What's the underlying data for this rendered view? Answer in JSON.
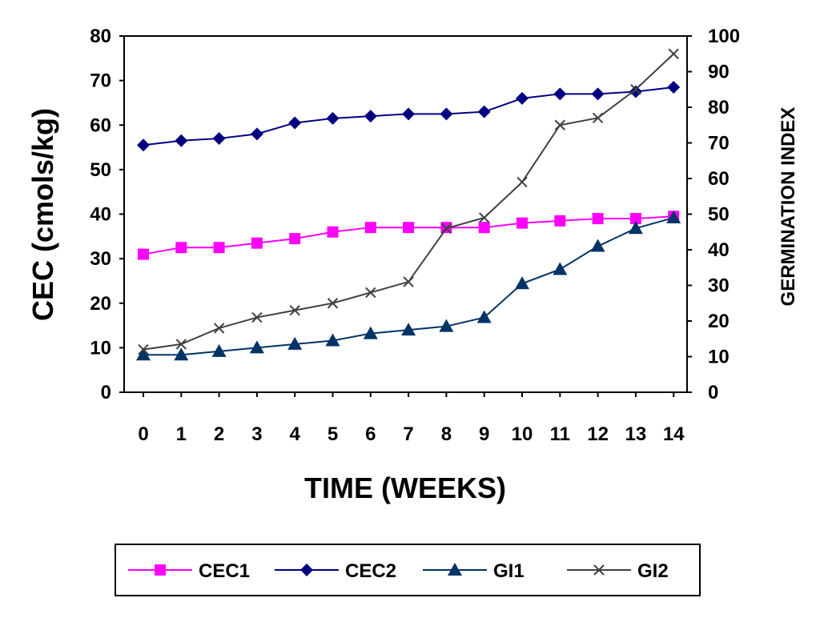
{
  "chart_data": {
    "type": "line",
    "title": "",
    "xlabel": "TIME (WEEKS)",
    "ylabel": "CEC (cmols/kg)",
    "y2label": "GERMINATION INDEX",
    "x": [
      0,
      1,
      2,
      3,
      4,
      5,
      6,
      7,
      8,
      9,
      10,
      11,
      12,
      13,
      14
    ],
    "ylim": [
      0,
      80
    ],
    "y2lim": [
      0,
      100
    ],
    "yticks": [
      0,
      10,
      20,
      30,
      40,
      50,
      60,
      70,
      80
    ],
    "y2ticks": [
      0,
      10,
      20,
      30,
      40,
      50,
      60,
      70,
      80,
      90,
      100
    ],
    "grid": false,
    "legend_position": "bottom",
    "series": [
      {
        "name": "CEC1",
        "axis": "left",
        "color": "#ff00ff",
        "marker": "square",
        "values": [
          31,
          32.5,
          32.5,
          33.5,
          34.5,
          36,
          37,
          37,
          37,
          37,
          38,
          38.5,
          39,
          39,
          39.5
        ]
      },
      {
        "name": "CEC2",
        "axis": "left",
        "color": "#000080",
        "marker": "diamond",
        "values": [
          55.5,
          56.5,
          57,
          58,
          60.5,
          61.5,
          62,
          62.5,
          62.5,
          63,
          66,
          67,
          67,
          67.5,
          68.5
        ]
      },
      {
        "name": "GI1",
        "axis": "right",
        "color": "#003366",
        "marker": "triangle",
        "values": [
          10.5,
          10.5,
          11.5,
          12.5,
          13.5,
          14.5,
          16.5,
          17.5,
          18.5,
          21,
          30.5,
          34.5,
          41,
          46,
          49
        ]
      },
      {
        "name": "GI2",
        "axis": "right",
        "color": "#404040",
        "marker": "x",
        "values": [
          12,
          13.5,
          18,
          21,
          23,
          25,
          28,
          31,
          46,
          49,
          59,
          75,
          77,
          85,
          95
        ]
      }
    ]
  }
}
